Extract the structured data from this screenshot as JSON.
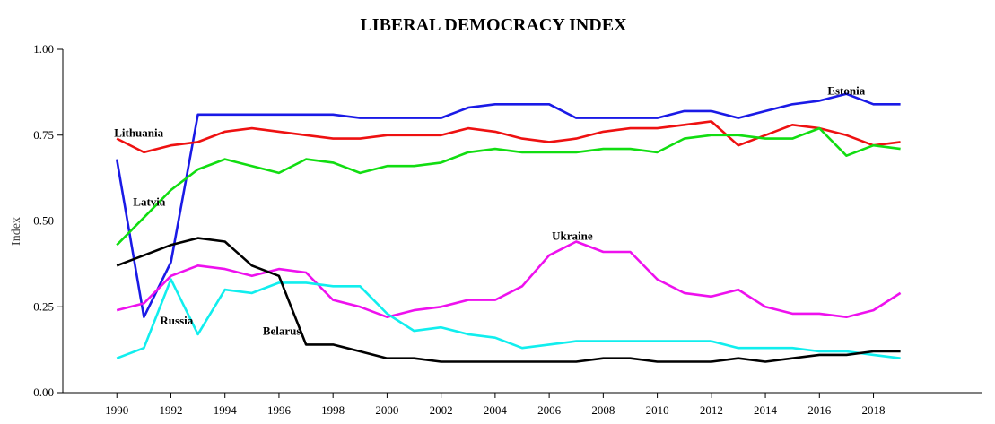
{
  "chart_data": {
    "type": "line",
    "title": "LIBERAL DEMOCRACY INDEX",
    "xlabel": "",
    "ylabel": "Index",
    "xlim": [
      1988,
      2022
    ],
    "ylim": [
      0,
      1
    ],
    "x_ticks": [
      1990,
      1992,
      1994,
      1996,
      1998,
      2000,
      2002,
      2004,
      2006,
      2008,
      2010,
      2012,
      2014,
      2016,
      2018
    ],
    "y_ticks": [
      {
        "value": 0,
        "label": "0.00"
      },
      {
        "value": 0.25,
        "label": "0.25"
      },
      {
        "value": 0.5,
        "label": "0.50"
      },
      {
        "value": 0.75,
        "label": "0.75"
      },
      {
        "value": 1,
        "label": "1.00"
      }
    ],
    "grid": false,
    "legend": "none",
    "x": [
      1990,
      1991,
      1992,
      1993,
      1994,
      1995,
      1996,
      1997,
      1998,
      1999,
      2000,
      2001,
      2002,
      2003,
      2004,
      2005,
      2006,
      2007,
      2008,
      2009,
      2010,
      2011,
      2012,
      2013,
      2014,
      2015,
      2016,
      2017,
      2018,
      2019
    ],
    "series": [
      {
        "name": "Estonia",
        "color": "#1a1ae6",
        "label_at": [
          2016.3,
          0.868
        ],
        "values": [
          0.68,
          0.22,
          0.38,
          0.81,
          0.81,
          0.81,
          0.81,
          0.81,
          0.81,
          0.8,
          0.8,
          0.8,
          0.8,
          0.83,
          0.84,
          0.84,
          0.84,
          0.8,
          0.8,
          0.8,
          0.8,
          0.82,
          0.82,
          0.8,
          0.82,
          0.84,
          0.85,
          0.87,
          0.84,
          0.84
        ]
      },
      {
        "name": "Lithuania",
        "color": "#ee1111",
        "label_at": [
          1989.9,
          0.745
        ],
        "values": [
          0.74,
          0.7,
          0.72,
          0.73,
          0.76,
          0.77,
          0.76,
          0.75,
          0.74,
          0.74,
          0.75,
          0.75,
          0.75,
          0.77,
          0.76,
          0.74,
          0.73,
          0.74,
          0.76,
          0.77,
          0.77,
          0.78,
          0.79,
          0.72,
          0.75,
          0.78,
          0.77,
          0.75,
          0.72,
          0.73
        ]
      },
      {
        "name": "Latvia",
        "color": "#11dd11",
        "label_at": [
          1990.6,
          0.545
        ],
        "values": [
          0.43,
          0.51,
          0.59,
          0.65,
          0.68,
          0.66,
          0.64,
          0.68,
          0.67,
          0.64,
          0.66,
          0.66,
          0.67,
          0.7,
          0.71,
          0.7,
          0.7,
          0.7,
          0.71,
          0.71,
          0.7,
          0.74,
          0.75,
          0.75,
          0.74,
          0.74,
          0.77,
          0.69,
          0.72,
          0.71
        ]
      },
      {
        "name": "Ukraine",
        "color": "#ee11ee",
        "label_at": [
          2006.1,
          0.445
        ],
        "values": [
          0.24,
          0.26,
          0.34,
          0.37,
          0.36,
          0.34,
          0.36,
          0.35,
          0.27,
          0.25,
          0.22,
          0.24,
          0.25,
          0.27,
          0.27,
          0.31,
          0.4,
          0.44,
          0.41,
          0.41,
          0.33,
          0.29,
          0.28,
          0.3,
          0.25,
          0.23,
          0.23,
          0.22,
          0.24,
          0.29
        ]
      },
      {
        "name": "Russia",
        "color": "#11eeee",
        "label_at": [
          1991.6,
          0.198
        ],
        "values": [
          0.1,
          0.13,
          0.33,
          0.17,
          0.3,
          0.29,
          0.32,
          0.32,
          0.31,
          0.31,
          0.23,
          0.18,
          0.19,
          0.17,
          0.16,
          0.13,
          0.14,
          0.15,
          0.15,
          0.15,
          0.15,
          0.15,
          0.15,
          0.13,
          0.13,
          0.13,
          0.12,
          0.12,
          0.11,
          0.1
        ]
      },
      {
        "name": "Belarus",
        "color": "#000000",
        "label_at": [
          1995.4,
          0.168
        ],
        "values": [
          0.37,
          0.4,
          0.43,
          0.45,
          0.44,
          0.37,
          0.34,
          0.14,
          0.14,
          0.12,
          0.1,
          0.1,
          0.09,
          0.09,
          0.09,
          0.09,
          0.09,
          0.09,
          0.1,
          0.1,
          0.09,
          0.09,
          0.09,
          0.1,
          0.09,
          0.1,
          0.11,
          0.11,
          0.12,
          0.12
        ]
      }
    ]
  }
}
